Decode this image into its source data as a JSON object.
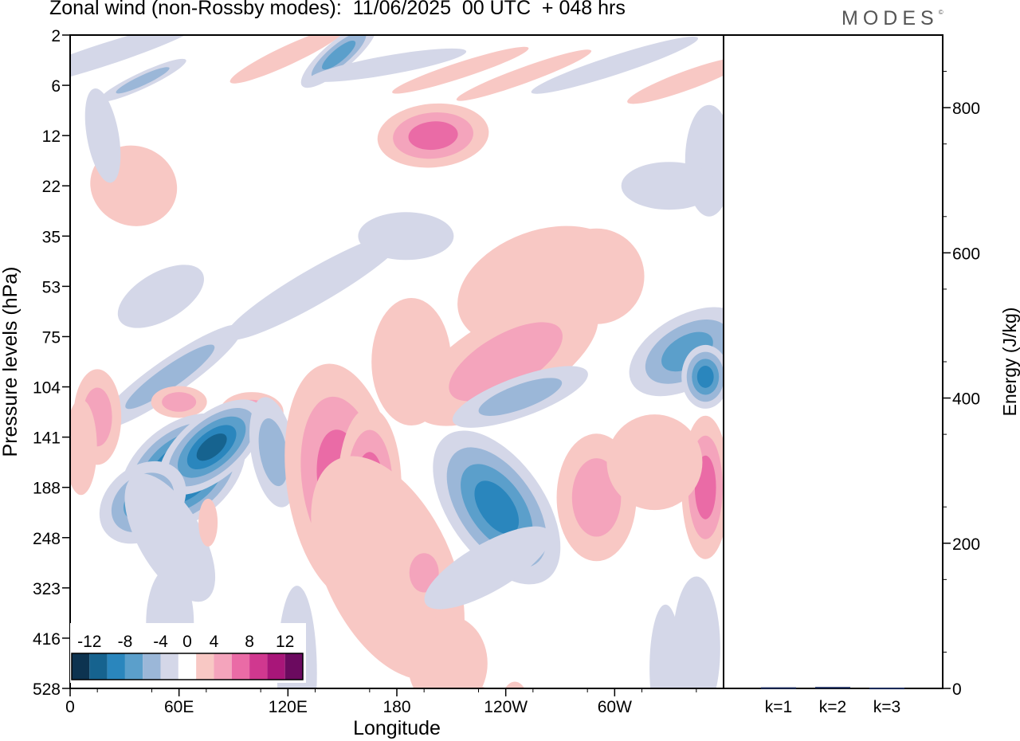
{
  "title": "Zonal wind (non-Rossby modes):  11/06/2025  00 UTC  + 048 hrs",
  "logo": {
    "text": "MODES",
    "mark": "©"
  },
  "chart_data": [
    {
      "type": "heatmap",
      "xlabel": "Longitude",
      "ylabel": "Pressure levels (hPa)",
      "x_ticks": [
        "0",
        "60E",
        "120E",
        "180",
        "120W",
        "60W"
      ],
      "y_ticks": [
        "2",
        "6",
        "12",
        "22",
        "35",
        "53",
        "75",
        "104",
        "141",
        "188",
        "248",
        "323",
        "416",
        "528"
      ],
      "grid": false,
      "colorbar": {
        "placement": "bottom-left",
        "tick_labels": [
          "-12",
          "-8",
          "-4",
          "0",
          "4",
          "8",
          "12"
        ],
        "levels": [
          -14,
          -12,
          -10,
          -8,
          -6,
          -4,
          -2,
          2,
          4,
          6,
          8,
          10,
          12,
          14
        ],
        "colors": [
          "#0d3350",
          "#16638f",
          "#2a86bd",
          "#5b9fcb",
          "#9bb7d8",
          "#d4d7e8",
          "#ffffff",
          "#f8c8c4",
          "#f4a4bc",
          "#ea6ba6",
          "#d0388f",
          "#a81679",
          "#6b0a5f"
        ]
      },
      "features": [
        {
          "lon": 58,
          "level": "141",
          "value": -14
        },
        {
          "lon": 72,
          "level": "141",
          "value": -12
        },
        {
          "lon": 138,
          "level": "104",
          "value": -6
        },
        {
          "lon": 150,
          "level": "35",
          "value": -4
        },
        {
          "lon": 148,
          "level": "2",
          "value": -8
        },
        {
          "lon": 238,
          "level": "188",
          "value": -12
        },
        {
          "lon": 350,
          "level": "75",
          "value": -8
        },
        {
          "lon": 160,
          "level": "141",
          "value": 8
        },
        {
          "lon": 180,
          "level": "248",
          "value": 4
        },
        {
          "lon": 198,
          "level": "12",
          "value": 8
        },
        {
          "lon": 270,
          "level": "53",
          "value": 6
        },
        {
          "lon": 245,
          "level": "75",
          "value": 6
        },
        {
          "lon": 292,
          "level": "141",
          "value": 6
        },
        {
          "lon": 345,
          "level": "141",
          "value": 8
        },
        {
          "lon": 15,
          "level": "104",
          "value": 6
        },
        {
          "lon": 60,
          "level": "104",
          "value": 6
        }
      ]
    },
    {
      "type": "bar",
      "ylabel": "Energy (J/kg)",
      "categories": [
        "k=1",
        "k=2",
        "k=3"
      ],
      "values": [
        1.5,
        2,
        1
      ],
      "ylim": [
        0,
        900
      ],
      "y_ticks": [
        "0",
        "200",
        "400",
        "600",
        "800"
      ],
      "color": "#1a2a5a"
    }
  ]
}
